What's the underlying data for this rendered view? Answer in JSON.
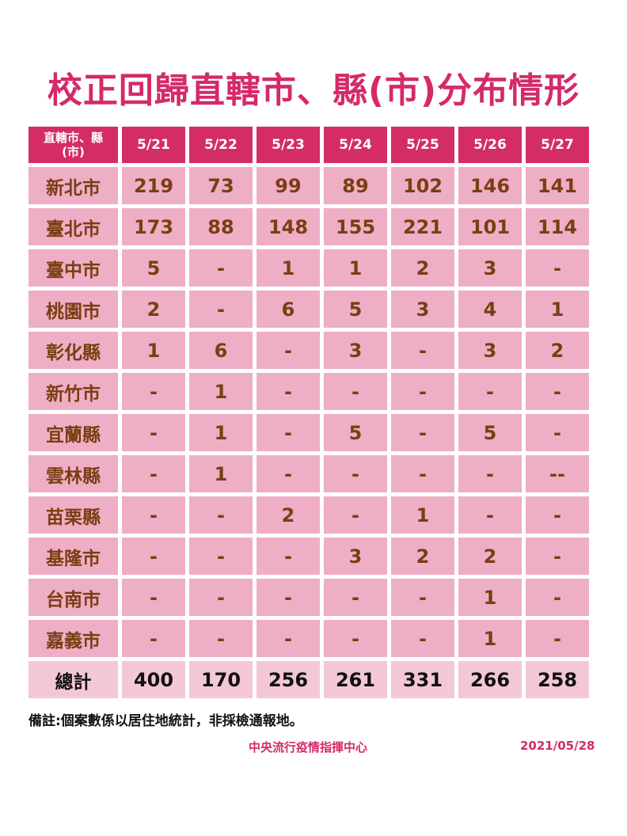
{
  "title": "校正回歸直轄市、縣(市)分布情形",
  "colors": {
    "header_bg": "#d42d64",
    "cell_bg": "#eeaec5",
    "total_bg": "#f4c7d7",
    "title": "#d42a6a",
    "cell_text": "#7a3e12"
  },
  "table": {
    "header_first_line1": "直轄市、縣",
    "header_first_line2": "(市)",
    "dates": [
      "5/21",
      "5/22",
      "5/23",
      "5/24",
      "5/25",
      "5/26",
      "5/27"
    ],
    "rows": [
      {
        "name": "新北市",
        "values": [
          "219",
          "73",
          "99",
          "89",
          "102",
          "146",
          "141"
        ]
      },
      {
        "name": "臺北市",
        "values": [
          "173",
          "88",
          "148",
          "155",
          "221",
          "101",
          "114"
        ]
      },
      {
        "name": "臺中市",
        "values": [
          "5",
          "-",
          "1",
          "1",
          "2",
          "3",
          "-"
        ]
      },
      {
        "name": "桃園市",
        "values": [
          "2",
          "-",
          "6",
          "5",
          "3",
          "4",
          "1"
        ]
      },
      {
        "name": "彰化縣",
        "values": [
          "1",
          "6",
          "-",
          "3",
          "-",
          "3",
          "2"
        ]
      },
      {
        "name": "新竹市",
        "values": [
          "-",
          "1",
          "-",
          "-",
          "-",
          "-",
          "-"
        ]
      },
      {
        "name": "宜蘭縣",
        "values": [
          "-",
          "1",
          "-",
          "5",
          "-",
          "5",
          "-"
        ]
      },
      {
        "name": "雲林縣",
        "values": [
          "-",
          "1",
          "-",
          "-",
          "-",
          "-",
          "--"
        ]
      },
      {
        "name": "苗栗縣",
        "values": [
          "-",
          "-",
          "2",
          "-",
          "1",
          "-",
          "-"
        ]
      },
      {
        "name": "基隆市",
        "values": [
          "-",
          "-",
          "-",
          "3",
          "2",
          "2",
          "-"
        ]
      },
      {
        "name": "台南市",
        "values": [
          "-",
          "-",
          "-",
          "-",
          "-",
          "1",
          "-"
        ]
      },
      {
        "name": "嘉義市",
        "values": [
          "-",
          "-",
          "-",
          "-",
          "-",
          "1",
          "-"
        ]
      }
    ],
    "total": {
      "name": "總計",
      "values": [
        "400",
        "170",
        "256",
        "261",
        "331",
        "266",
        "258"
      ]
    }
  },
  "note": "備註:個案數係以居住地統計，非採檢通報地。",
  "org": "中央流行疫情指揮中心",
  "date": "2021/05/28"
}
